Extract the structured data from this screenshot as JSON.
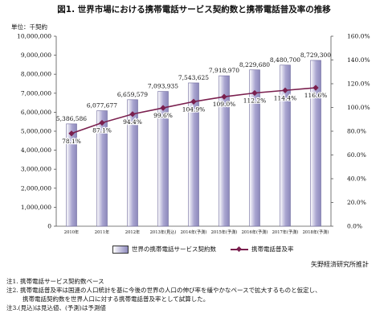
{
  "title": "図1. 世界市場における携帯電話サービス契約数と携帯電話普及率の推移",
  "unit_label": "単位：千契約",
  "legend": {
    "bar_label": "世界の携帯電話サービス契約数",
    "line_label": "携帯電話普及率"
  },
  "source": "矢野経済研究所推計",
  "notes": [
    "注1. 携帯電話サービス契約数ベース",
    "注2. 携帯電話普及率は国連の人口統計を基に今後の世界の人口の伸び率を緩やかなペースで拡大するものと仮定し、",
    "携帯電話契約数を世界人口に対する携帯電話普及率として試算した。",
    "注3.(見込)は見込値、(予測)は予測値"
  ],
  "colors": {
    "bar": "#a9a5d0",
    "line": "#7a1f4e"
  },
  "chart_data": {
    "type": "bar",
    "categories": [
      "2010年",
      "2011年",
      "2012年",
      "2013年(見込)",
      "2014年(予測)",
      "2015年(予測)",
      "2016年(予測)",
      "2017年(予測)",
      "2018年(予測)"
    ],
    "series": [
      {
        "name": "世界の携帯電話サービス契約数",
        "axis": "left",
        "type": "bar",
        "values": [
          5386586,
          6077677,
          6659579,
          7093935,
          7543625,
          7918970,
          8229680,
          8480700,
          8729300
        ],
        "labels": [
          "5,386,586",
          "6,077,677",
          "6,659,579",
          "7,093,935",
          "7,543,625",
          "7,918,970",
          "8,229,680",
          "8,480,700",
          "8,729,300"
        ]
      },
      {
        "name": "携帯電話普及率",
        "axis": "right",
        "type": "line",
        "values": [
          78.1,
          87.1,
          94.4,
          99.6,
          104.9,
          109.0,
          112.2,
          114.4,
          116.6
        ],
        "labels": [
          "78.1%",
          "87.1%",
          "94.4%",
          "99.6%",
          "104.9%",
          "109.0%",
          "112.2%",
          "114.4%",
          "116.6%"
        ]
      }
    ],
    "ylim_left": [
      0,
      10000000
    ],
    "ylim_right": [
      0,
      160
    ],
    "yticks_left": [
      "0",
      "1,000,000",
      "2,000,000",
      "3,000,000",
      "4,000,000",
      "5,000,000",
      "6,000,000",
      "7,000,000",
      "8,000,000",
      "9,000,000",
      "10,000,000"
    ],
    "yticks_right": [
      "0.0%",
      "20.0%",
      "40.0%",
      "60.0%",
      "80.0%",
      "100.0%",
      "120.0%",
      "140.0%",
      "160.0%"
    ],
    "grid": false
  }
}
